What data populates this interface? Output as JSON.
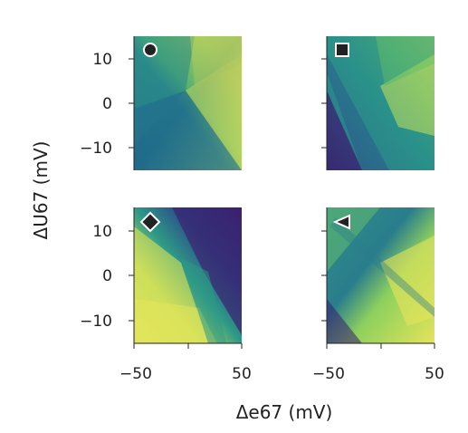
{
  "chart_data": {
    "type": "heatmap",
    "layout": "2x2 grid",
    "shared_xlabel": "Δe67 (mV)",
    "shared_ylabel": "ΔU67 (mV)",
    "xlim": [
      -50,
      50
    ],
    "ylim": [
      -15,
      15
    ],
    "x_ticks": [
      -50,
      50
    ],
    "x_tick_labels": [
      "−50",
      "50"
    ],
    "y_ticks": [
      10,
      0,
      -10
    ],
    "y_tick_labels": [
      "10",
      "0",
      "−10"
    ],
    "colormap": "viridis",
    "colors": {
      "low": "#3b1c6e",
      "mid": "#2a8a8a",
      "high": "#e9e65a"
    },
    "panels": [
      {
        "marker": "circle",
        "marker_xy": [
          -35,
          12
        ],
        "regime": "bright upper-right, diagonal transition, dark lower-left"
      },
      {
        "marker": "square",
        "marker_xy": [
          -35,
          12
        ],
        "regime": "teal field with dark lower-left wedge and bright upper-right lobe"
      },
      {
        "marker": "diamond",
        "marker_xy": [
          -35,
          12
        ],
        "regime": "bright lower-left, dark upper-right"
      },
      {
        "marker": "triangle",
        "marker_xy": [
          -35,
          12
        ],
        "regime": "bright right region, teal left, thin diagonal bands"
      }
    ]
  }
}
